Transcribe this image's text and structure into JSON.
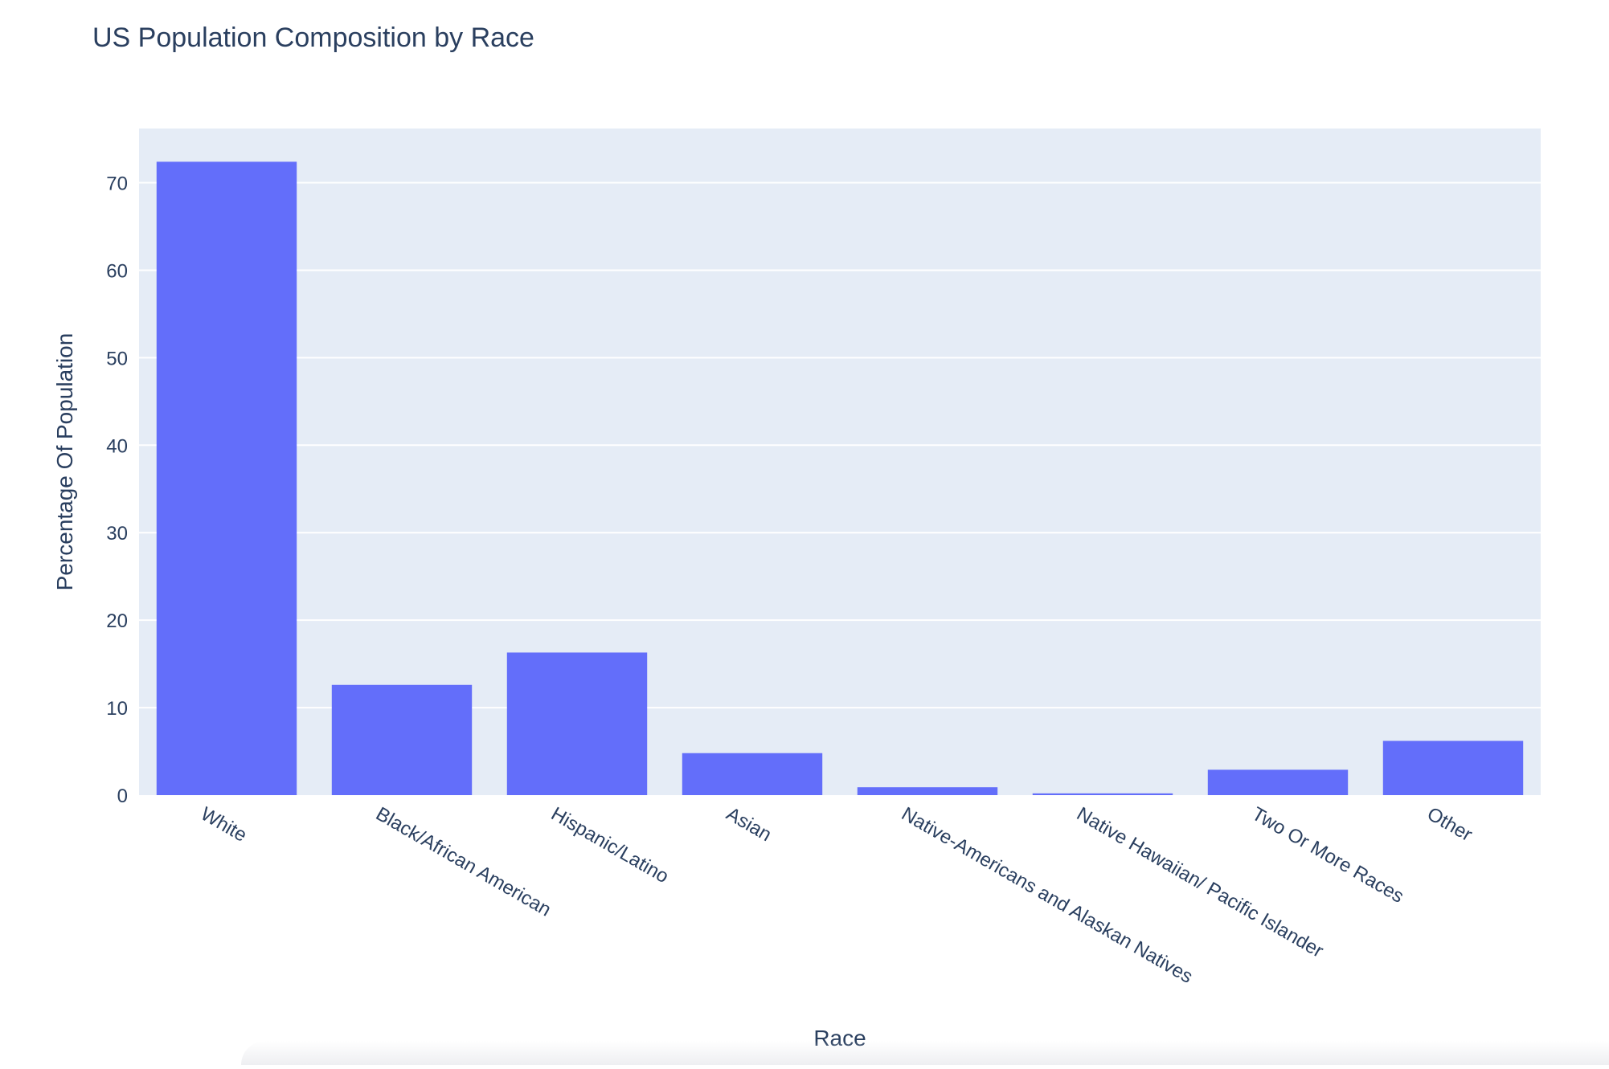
{
  "chart_data": {
    "type": "bar",
    "title": "US Population Composition by Race",
    "xlabel": "Race",
    "ylabel": "Percentage Of Population",
    "categories": [
      "White",
      "Black/African American",
      "Hispanic/Latino",
      "Asian",
      "Native-Americans and Alaskan Natives",
      "Native Hawaiian/ Pacific Islander",
      "Two Or More Races",
      "Other"
    ],
    "values": [
      72.4,
      12.6,
      16.3,
      4.8,
      0.9,
      0.2,
      2.9,
      6.2
    ],
    "ylim": [
      0,
      76.2
    ],
    "yticks": [
      0,
      10,
      20,
      30,
      40,
      50,
      60,
      70
    ],
    "grid": true,
    "legend": "none",
    "colors": {
      "bar": "#636efa",
      "plot_bg": "#e5ecf6",
      "grid": "#ffffff",
      "text": "#2a3f5f"
    }
  }
}
